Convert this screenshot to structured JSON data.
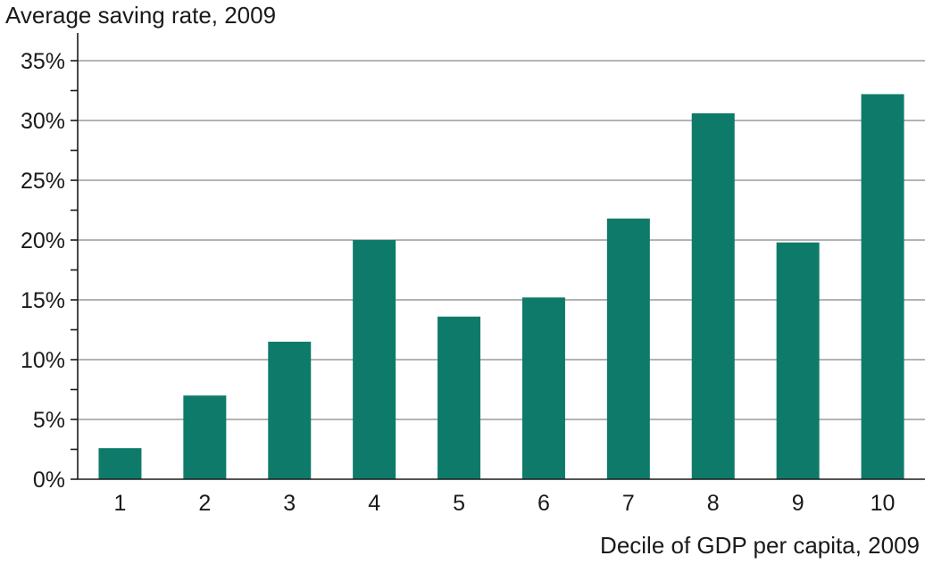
{
  "chart_data": {
    "type": "bar",
    "title": "",
    "ylabel": "Average saving rate, 2009",
    "xlabel": "Decile of GDP per capita, 2009",
    "categories": [
      "1",
      "2",
      "3",
      "4",
      "5",
      "6",
      "7",
      "8",
      "9",
      "10"
    ],
    "values": [
      2.6,
      7.0,
      11.5,
      20.0,
      13.6,
      15.2,
      21.8,
      30.6,
      19.8,
      32.2
    ],
    "ylim": [
      0,
      35
    ],
    "yticks": [
      0,
      5,
      10,
      15,
      20,
      25,
      30,
      35
    ],
    "ytick_labels": [
      "0%",
      "5%",
      "10%",
      "15%",
      "20%",
      "25%",
      "30%",
      "35%"
    ],
    "grid": true,
    "bar_color": "#0e7b6a"
  }
}
